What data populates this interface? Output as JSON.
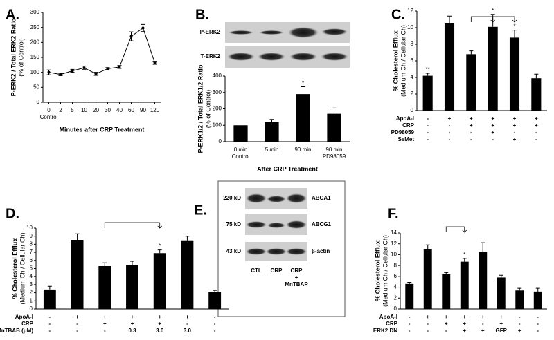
{
  "chart_data": [
    {
      "type": "line",
      "panel_label": "A.",
      "ylabel": [
        "P-ERK2 / Total ERK2 Ratio",
        "(% of Control)"
      ],
      "xlabel": "Minutes after CRP Treatment",
      "categories": [
        "0",
        "2",
        "5",
        "10",
        "20",
        "30",
        "40",
        "60",
        "90",
        "120"
      ],
      "category_sublabels": [
        "Control",
        null,
        null,
        null,
        null,
        null,
        null,
        null,
        null,
        null
      ],
      "values": [
        100,
        93,
        105,
        115,
        95,
        112,
        118,
        220,
        248,
        132
      ],
      "errors": [
        8,
        4,
        5,
        6,
        5,
        4,
        5,
        15,
        12,
        5
      ],
      "color": "#000000",
      "ylim": [
        0,
        300
      ],
      "yticks": [
        0,
        50,
        100,
        150,
        200,
        250,
        300
      ]
    },
    {
      "type": "bar",
      "panel_label": "B.",
      "ylabel": [
        "P-ERK1/2 / Total ERK1/2 Ratio",
        "(% of Control)"
      ],
      "xlabel": "After CRP Treatment",
      "categories": [
        "0 min",
        "5 min",
        "90 min",
        "90 min"
      ],
      "category_sublabels": [
        "Control",
        null,
        null,
        "PD98059"
      ],
      "values": [
        100,
        118,
        290,
        170
      ],
      "errors": [
        null,
        18,
        45,
        35
      ],
      "significance": [
        null,
        null,
        "*",
        null
      ],
      "color": "#000000",
      "ylim": [
        0,
        400
      ],
      "yticks": [
        0,
        100,
        200,
        300,
        400
      ]
    },
    {
      "type": "bar",
      "panel_label": "C.",
      "ylabel": [
        "% Cholesterol Efflux",
        "(Medium Ch / Cellular Ch)"
      ],
      "values": [
        4.2,
        10.5,
        6.8,
        10.1,
        8.8,
        3.9
      ],
      "errors": [
        0.3,
        0.9,
        0.4,
        1.5,
        0.9,
        0.5
      ],
      "significance": [
        "**",
        null,
        null,
        "*",
        "*",
        null
      ],
      "conditions": [
        {
          "name": "ApoA-I",
          "values": [
            "-",
            "+",
            "+",
            "+",
            "+",
            "+"
          ]
        },
        {
          "name": "CRP",
          "values": [
            "-",
            "-",
            "+",
            "+",
            "+",
            "+"
          ]
        },
        {
          "name": "PD98059",
          "values": [
            "-",
            "-",
            "-",
            "+",
            "-",
            "-"
          ]
        },
        {
          "name": "SeMet",
          "values": [
            "-",
            "-",
            "-",
            "-",
            "+",
            "-"
          ]
        }
      ],
      "color": "#000000",
      "ylim": [
        0,
        12
      ],
      "yticks": [
        0,
        2,
        4,
        6,
        8,
        10,
        12
      ]
    },
    {
      "type": "bar",
      "panel_label": "D.",
      "ylabel": [
        "% Cholesterol Efflux",
        "(Medium Ch / Cellular Ch)"
      ],
      "values": [
        2.4,
        8.5,
        5.3,
        5.4,
        6.9,
        8.4,
        2.1
      ],
      "errors": [
        0.4,
        0.8,
        0.4,
        0.5,
        0.4,
        0.6,
        0.2
      ],
      "significance": [
        null,
        null,
        null,
        null,
        "*",
        null,
        null
      ],
      "conditions": [
        {
          "name": "ApoA-I",
          "values": [
            "-",
            "+",
            "+",
            "+",
            "+",
            "+",
            "-"
          ]
        },
        {
          "name": "CRP",
          "values": [
            "-",
            "-",
            "+",
            "+",
            "+",
            "-",
            "-"
          ]
        },
        {
          "name": "MnTBAB (μM)",
          "values": [
            "-",
            "-",
            "-",
            "0.3",
            "3.0",
            "3.0",
            "-"
          ]
        }
      ],
      "color": "#000000",
      "ylim": [
        0,
        10
      ],
      "yticks": [
        0,
        1,
        2,
        3,
        4,
        5,
        6,
        7,
        8,
        9,
        10
      ]
    },
    {
      "type": "bar",
      "panel_label": "F.",
      "ylabel": [
        "% Cholesterol Efflux",
        "(Medium Ch / Cellular Ch)"
      ],
      "values": [
        4.6,
        11.0,
        6.4,
        8.7,
        10.5,
        5.8,
        3.4,
        3.2
      ],
      "errors": [
        0.3,
        0.8,
        0.3,
        0.6,
        1.7,
        0.4,
        0.4,
        0.6
      ],
      "significance": [
        null,
        null,
        null,
        "*",
        null,
        null,
        null,
        null
      ],
      "conditions": [
        {
          "name": "ApoA-I",
          "values": [
            "-",
            "+",
            "+",
            "+",
            "+",
            "+",
            "-",
            "-"
          ]
        },
        {
          "name": "CRP",
          "values": [
            "-",
            "-",
            "+",
            "+",
            "-",
            "+",
            "-",
            "-"
          ]
        },
        {
          "name": "ERK2 DN",
          "values": [
            "-",
            "-",
            "-",
            "+",
            "+",
            "GFP",
            "+",
            "-"
          ]
        }
      ],
      "color": "#000000",
      "ylim": [
        0,
        14
      ],
      "yticks": [
        0,
        2,
        4,
        6,
        8,
        10,
        12,
        14
      ]
    }
  ],
  "blot_b": {
    "rows": [
      "P-ERK2",
      "T-ERK2"
    ]
  },
  "blot_e": {
    "panel_label": "E.",
    "sizes": [
      "220 kD",
      "75 kD",
      "43 kD"
    ],
    "proteins": [
      "ABCA1",
      "ABCG1",
      "β-actin"
    ],
    "lanes": [
      [
        "CTL"
      ],
      [
        "CRP"
      ],
      [
        "CRP",
        "+",
        "MnTBAP"
      ]
    ]
  }
}
